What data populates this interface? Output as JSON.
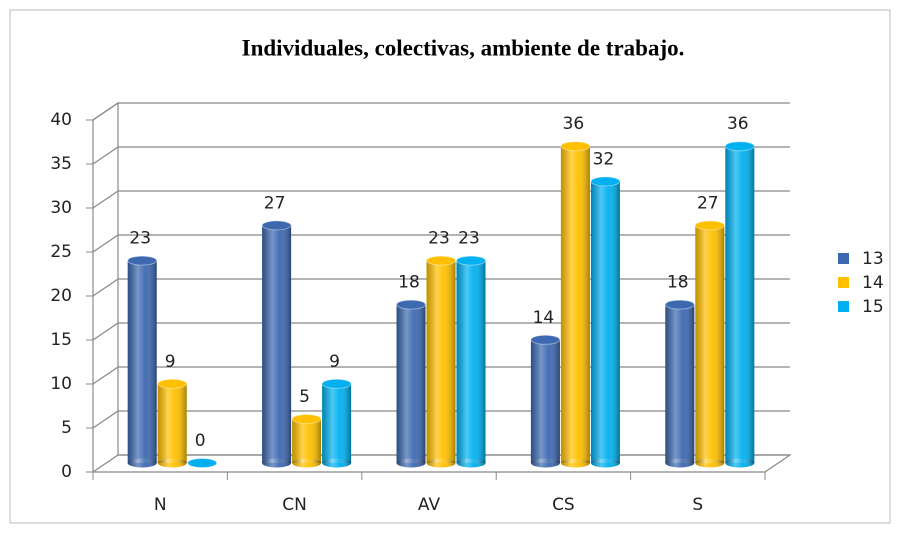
{
  "chart_data": {
    "type": "bar",
    "title": "Individuales, colectivas, ambiente de trabajo.",
    "categories": [
      "N",
      "CN",
      "AV",
      "CS",
      "S"
    ],
    "series": [
      {
        "name": "13",
        "color": "#3d69b1",
        "values": [
          23,
          27,
          18,
          14,
          18
        ]
      },
      {
        "name": "14",
        "color": "#ffc000",
        "values": [
          9,
          5,
          23,
          36,
          27
        ]
      },
      {
        "name": "15",
        "color": "#00b0f0",
        "values": [
          0,
          9,
          23,
          32,
          36
        ]
      }
    ],
    "ylim": [
      0,
      40
    ],
    "yticks": [
      0,
      5,
      10,
      15,
      20,
      25,
      30,
      35,
      40
    ],
    "grid": true,
    "legend": "right"
  }
}
